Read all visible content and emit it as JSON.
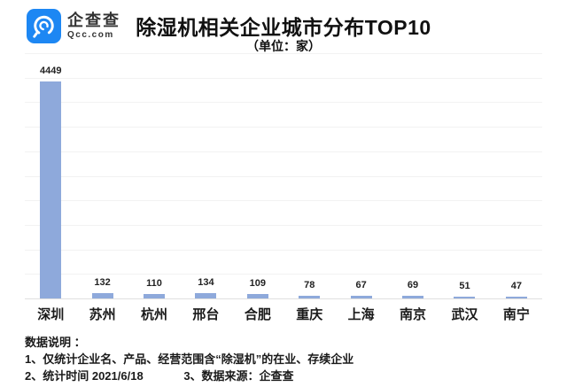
{
  "header": {
    "logo": {
      "brand": "企查查",
      "domain": "Qcc.com",
      "brand_color": "#1d87f3"
    },
    "title": "除湿机相关企业城市分布TOP10",
    "subtitle": "（单位：家）"
  },
  "chart_data": {
    "type": "bar",
    "title": "除湿机相关企业城市分布TOP10",
    "unit_label": "（单位：家）",
    "categories": [
      "深圳",
      "苏州",
      "杭州",
      "邢台",
      "合肥",
      "重庆",
      "上海",
      "南京",
      "武汉",
      "南宁"
    ],
    "values": [
      4449,
      132,
      110,
      134,
      109,
      78,
      67,
      69,
      51,
      47
    ],
    "xlabel": "",
    "ylabel": "",
    "ylim": [
      0,
      5000
    ],
    "gridline_step": 500,
    "grid": true,
    "legend": false,
    "bar_color": "#8ea9db"
  },
  "footer": {
    "heading": "数据说明 ：",
    "note1": "1、仅统计企业名、产品、经营范围含“除湿机”的在业、存续企业",
    "note2": "2、统计时间 2021/6/18",
    "note3": "3、数据来源：企查查"
  }
}
